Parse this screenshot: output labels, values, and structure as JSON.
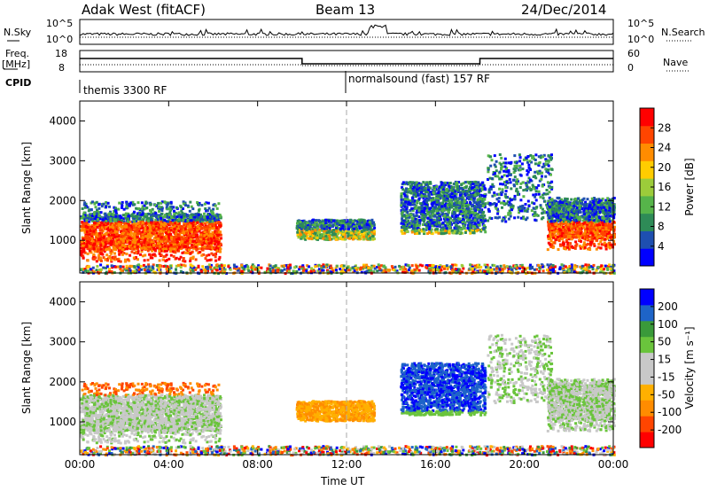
{
  "header": {
    "radar": "Adak West (fitACF)",
    "beam": "Beam 13",
    "date": "24/Dec/2014"
  },
  "strip_labels": {
    "nsky": "N.Sky",
    "nsky_top": "10^5",
    "nsky_bot": "10^0",
    "nsearch_top": "10^5",
    "nsearch_bot": "10^0",
    "nsearch": "N.Search",
    "freq": "Freq.",
    "freq_unit": "[MHz]",
    "freq_top": "18",
    "freq_bot": "8",
    "nave_top": "60",
    "nave_bot": "0",
    "nave": "Nave",
    "cpid": "CPID",
    "cpid_1": "themis 3300 RF",
    "cpid_2": "normalsound (fast) 157 RF"
  },
  "colors": {
    "power": [
      "#0000ff",
      "#1e4fb0",
      "#2e8b57",
      "#56b44a",
      "#9ccc3a",
      "#ffcc00",
      "#ff8c00",
      "#ff4500",
      "#ff0000"
    ],
    "velocity": [
      "#ff0000",
      "#ff4500",
      "#ff8c00",
      "#ffb000",
      "#c8c8c8",
      "#c8c8c8",
      "#6ac43c",
      "#3a9a3a",
      "#1e64c8",
      "#0000ff"
    ]
  },
  "chart_data": [
    {
      "type": "heatmap",
      "name": "power-panel",
      "ylabel": "Slant Range [km]",
      "xlim": [
        0,
        24
      ],
      "ylim": [
        180,
        4500
      ],
      "yticks": [
        "1000",
        "2000",
        "3000",
        "4000"
      ],
      "colorbar_label": "Power [dB]",
      "colorbar_ticks": [
        "4",
        "8",
        "12",
        "16",
        "20",
        "24",
        "28"
      ]
    },
    {
      "type": "heatmap",
      "name": "velocity-panel",
      "ylabel": "Slant Range [km]",
      "xlim": [
        0,
        24
      ],
      "ylim": [
        180,
        4500
      ],
      "yticks": [
        "1000",
        "2000",
        "3000",
        "4000"
      ],
      "colorbar_label": "Velocity [m s⁻¹]",
      "colorbar_ticks": [
        "200",
        "100",
        "50",
        "15",
        "-15",
        "-50",
        "-100",
        "-200"
      ],
      "xlabel": "Time UT",
      "xticks": [
        "00:00",
        "04:00",
        "08:00",
        "12:00",
        "16:00",
        "20:00",
        "00:00"
      ]
    }
  ]
}
